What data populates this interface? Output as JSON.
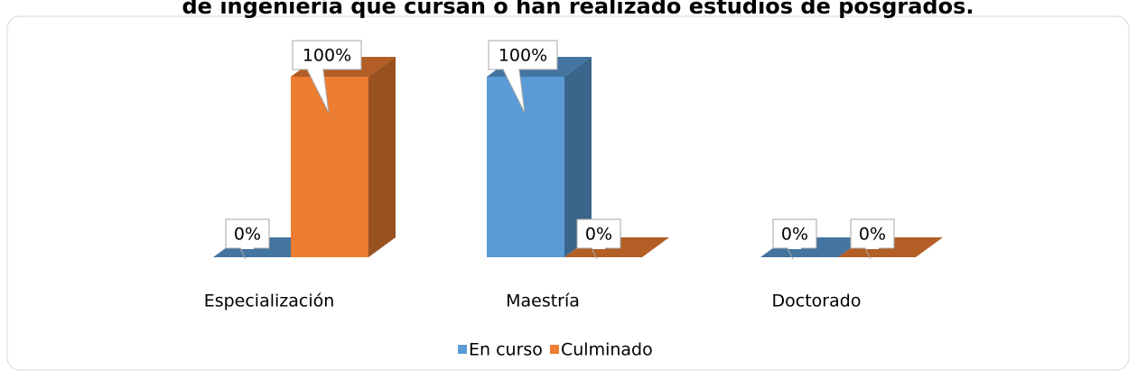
{
  "chart_data": {
    "type": "bar3d",
    "title": "de ingeniería que cursan o han realizado estudios de posgrados.",
    "categories": [
      "Especialización",
      "Maestría",
      "Doctorado"
    ],
    "series": [
      {
        "name": "En curso",
        "color": "#5b9bd5",
        "values": [
          0,
          100,
          0
        ],
        "value_labels": [
          "0%",
          "100%",
          "0%"
        ]
      },
      {
        "name": "Culminado",
        "color": "#ed7d31",
        "values": [
          100,
          0,
          0
        ],
        "value_labels": [
          "100%",
          "0%",
          "0%"
        ]
      }
    ],
    "legend": "bottom"
  }
}
